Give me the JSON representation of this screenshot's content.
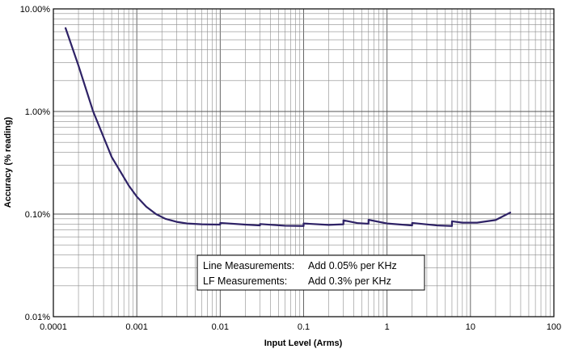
{
  "chart_data": {
    "type": "line",
    "xlabel": "Input Level (Arms)",
    "ylabel": "Accuracy (% reading)",
    "x_scale": "log",
    "y_scale": "log",
    "xlim": [
      0.0001,
      100
    ],
    "ylim": [
      0.01,
      10
    ],
    "grid": true,
    "x_tick_labels": [
      "0.0001",
      "0.001",
      "0.01",
      "0.1",
      "1",
      "10",
      "100"
    ],
    "y_tick_labels": [
      "0.01%",
      "0.10%",
      "1.00%",
      "10.00%"
    ],
    "line_color": "#2e2266",
    "series": [
      {
        "x": [
          0.00014,
          0.0002,
          0.0003,
          0.0005,
          0.0008,
          0.001,
          0.0013,
          0.0017,
          0.0022,
          0.003,
          0.004,
          0.006,
          0.01,
          0.01,
          0.02,
          0.03,
          0.03,
          0.06,
          0.1,
          0.1,
          0.2,
          0.3,
          0.3,
          0.45,
          0.6,
          0.6,
          1,
          2,
          2,
          4,
          6,
          6,
          8,
          12,
          20,
          30
        ],
        "y": [
          6.5,
          2.8,
          1.0,
          0.36,
          0.19,
          0.148,
          0.118,
          0.1,
          0.09,
          0.084,
          0.081,
          0.0795,
          0.079,
          0.082,
          0.079,
          0.0775,
          0.08,
          0.077,
          0.0765,
          0.081,
          0.0785,
          0.0795,
          0.087,
          0.0815,
          0.0805,
          0.088,
          0.081,
          0.0775,
          0.082,
          0.0775,
          0.0765,
          0.085,
          0.0825,
          0.0825,
          0.0875,
          0.1035
        ]
      }
    ],
    "annotations": [
      {
        "label": "Line Measurements:",
        "value": "Add 0.05% per KHz"
      },
      {
        "label": "LF Measurements:",
        "value": "Add 0.3% per KHz"
      }
    ]
  }
}
